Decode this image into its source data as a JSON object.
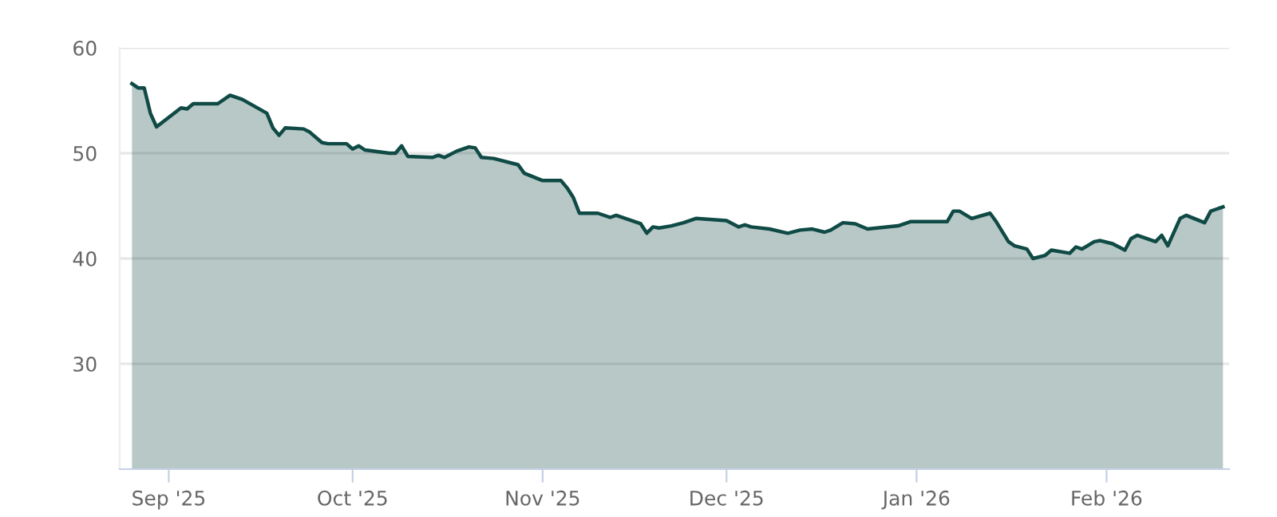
{
  "chart_data": {
    "type": "area",
    "x": [
      "2025-08-26",
      "2025-08-27",
      "2025-08-28",
      "2025-08-29",
      "2025-08-30",
      "2025-09-03",
      "2025-09-04",
      "2025-09-05",
      "2025-09-09",
      "2025-09-11",
      "2025-09-13",
      "2025-09-17",
      "2025-09-18",
      "2025-09-19",
      "2025-09-20",
      "2025-09-23",
      "2025-09-24",
      "2025-09-26",
      "2025-09-27",
      "2025-09-30",
      "2025-10-01",
      "2025-10-02",
      "2025-10-03",
      "2025-10-07",
      "2025-10-08",
      "2025-10-09",
      "2025-10-10",
      "2025-10-14",
      "2025-10-15",
      "2025-10-16",
      "2025-10-18",
      "2025-10-20",
      "2025-10-21",
      "2025-10-22",
      "2025-10-24",
      "2025-10-28",
      "2025-10-29",
      "2025-11-01",
      "2025-11-04",
      "2025-11-05",
      "2025-11-06",
      "2025-11-07",
      "2025-11-10",
      "2025-11-12",
      "2025-11-13",
      "2025-11-17",
      "2025-11-18",
      "2025-11-19",
      "2025-11-20",
      "2025-11-22",
      "2025-11-24",
      "2025-11-26",
      "2025-12-01",
      "2025-12-03",
      "2025-12-04",
      "2025-12-05",
      "2025-12-08",
      "2025-12-11",
      "2025-12-13",
      "2025-12-15",
      "2025-12-17",
      "2025-12-18",
      "2025-12-20",
      "2025-12-22",
      "2025-12-24",
      "2025-12-29",
      "2025-12-31",
      "2026-01-06",
      "2026-01-07",
      "2026-01-08",
      "2026-01-10",
      "2026-01-13",
      "2026-01-14",
      "2026-01-16",
      "2026-01-17",
      "2026-01-19",
      "2026-01-20",
      "2026-01-22",
      "2026-01-23",
      "2026-01-26",
      "2026-01-27",
      "2026-01-28",
      "2026-01-30",
      "2026-01-31",
      "2026-02-02",
      "2026-02-04",
      "2026-02-05",
      "2026-02-06",
      "2026-02-09",
      "2026-02-10",
      "2026-02-11",
      "2026-02-13",
      "2026-02-14",
      "2026-02-17",
      "2026-02-18",
      "2026-02-20"
    ],
    "series": [
      {
        "color": "#0f4a45",
        "values": [
          56.6,
          56.2,
          56.2,
          53.8,
          52.5,
          54.3,
          54.2,
          54.7,
          54.7,
          55.5,
          55.1,
          53.8,
          52.4,
          51.7,
          52.4,
          52.3,
          52.0,
          51.0,
          50.9,
          50.9,
          50.4,
          50.7,
          50.3,
          50.0,
          50.0,
          50.7,
          49.7,
          49.6,
          49.8,
          49.6,
          50.2,
          50.6,
          50.5,
          49.6,
          49.5,
          48.9,
          48.1,
          47.4,
          47.4,
          46.7,
          45.8,
          44.3,
          44.3,
          43.9,
          44.1,
          43.3,
          42.4,
          43.0,
          42.9,
          43.1,
          43.4,
          43.8,
          43.6,
          43.0,
          43.2,
          43.0,
          42.8,
          42.4,
          42.7,
          42.8,
          42.5,
          42.7,
          43.4,
          43.3,
          42.8,
          43.1,
          43.5,
          43.5,
          44.5,
          44.5,
          43.8,
          44.3,
          43.5,
          41.6,
          41.2,
          40.9,
          40.0,
          40.3,
          40.8,
          40.5,
          41.1,
          40.9,
          41.6,
          41.7,
          41.4,
          40.8,
          41.9,
          42.2,
          41.6,
          42.2,
          41.2,
          43.8,
          44.1,
          43.4,
          44.5,
          44.9
        ]
      }
    ],
    "xlim": [
      "2025-08-24",
      "2026-02-21"
    ],
    "xticks": [
      {
        "value": "2025-09-01",
        "label": "Sep '25"
      },
      {
        "value": "2025-10-01",
        "label": "Oct '25"
      },
      {
        "value": "2025-11-01",
        "label": "Nov '25"
      },
      {
        "value": "2025-12-01",
        "label": "Dec '25"
      },
      {
        "value": "2026-01-01",
        "label": "Jan '26"
      },
      {
        "value": "2026-02-01",
        "label": "Feb '26"
      }
    ],
    "ylim": [
      20,
      60
    ],
    "yticks": [
      30,
      40,
      50,
      60
    ],
    "grid": "y"
  }
}
